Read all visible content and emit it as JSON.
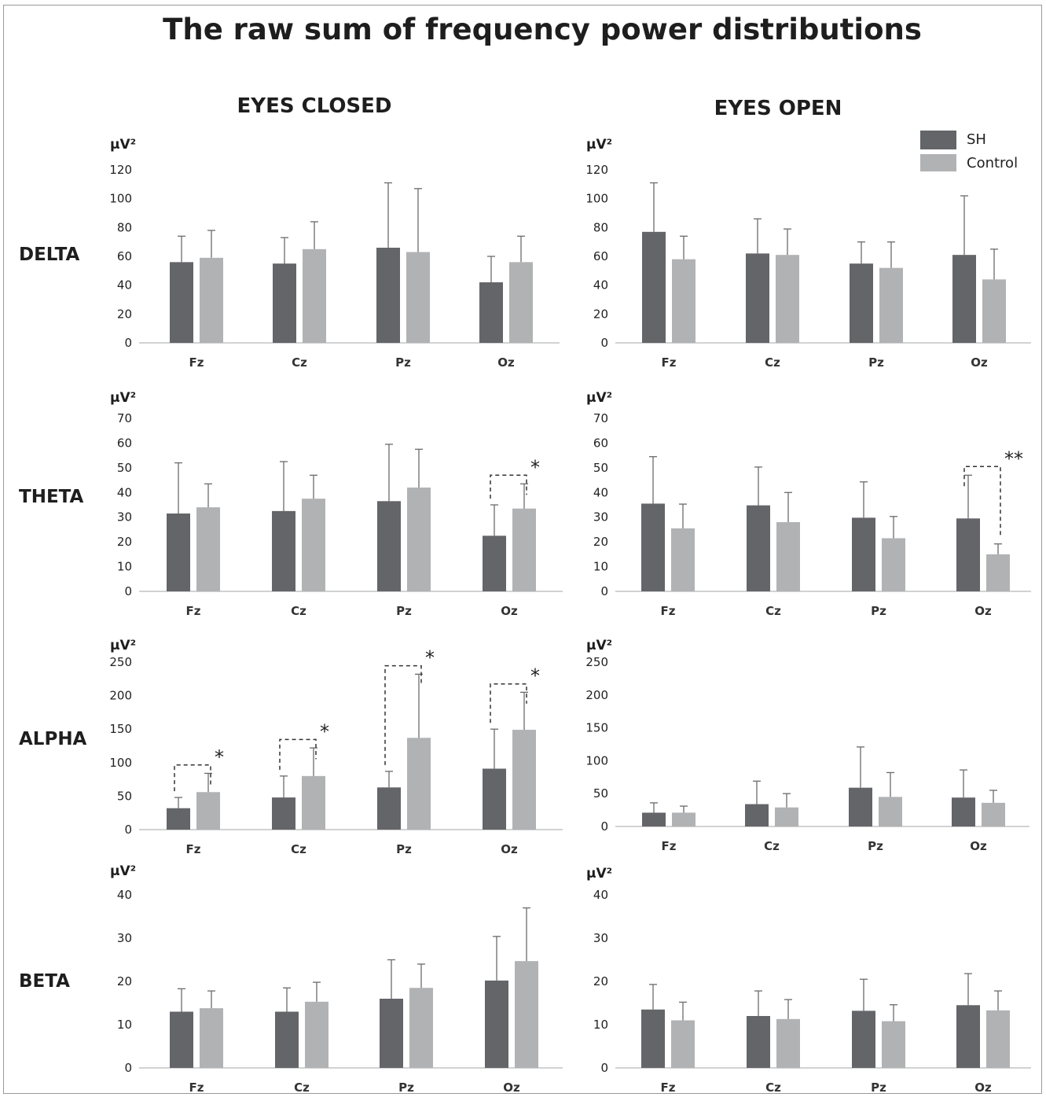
{
  "title": "The raw sum of frequency power distributions",
  "conditions": [
    "EYES CLOSED",
    "EYES OPEN"
  ],
  "bands": [
    "DELTA",
    "THETA",
    "ALPHA",
    "BETA"
  ],
  "unit": "µV²",
  "legend": [
    {
      "name": "SH",
      "color": "#646569"
    },
    {
      "name": "Control",
      "color": "#b1b2b4"
    }
  ],
  "chart_data": [
    {
      "type": "bar",
      "band": "DELTA",
      "condition": "EYES CLOSED",
      "ylim": [
        0,
        120
      ],
      "yticks": [
        0,
        20,
        40,
        60,
        80,
        100,
        120
      ],
      "categories": [
        "Fz",
        "Cz",
        "Pz",
        "Oz"
      ],
      "series": [
        {
          "name": "SH",
          "values": [
            56,
            55,
            66,
            42
          ],
          "errors": [
            18,
            18,
            45,
            18
          ]
        },
        {
          "name": "Control",
          "values": [
            59,
            65,
            63,
            56
          ],
          "errors": [
            19,
            19,
            44,
            18
          ]
        }
      ],
      "annotations": []
    },
    {
      "type": "bar",
      "band": "DELTA",
      "condition": "EYES OPEN",
      "ylim": [
        0,
        120
      ],
      "yticks": [
        0,
        20,
        40,
        60,
        80,
        100,
        120
      ],
      "categories": [
        "Fz",
        "Cz",
        "Pz",
        "Oz"
      ],
      "series": [
        {
          "name": "SH",
          "values": [
            77,
            62,
            55,
            61
          ],
          "errors": [
            34,
            24,
            15,
            41
          ]
        },
        {
          "name": "Control",
          "values": [
            58,
            61,
            52,
            44
          ],
          "errors": [
            16,
            18,
            18,
            21
          ]
        }
      ],
      "annotations": []
    },
    {
      "type": "bar",
      "band": "THETA",
      "condition": "EYES CLOSED",
      "ylim": [
        0,
        70
      ],
      "yticks": [
        0,
        10,
        20,
        30,
        40,
        50,
        60,
        70
      ],
      "categories": [
        "Fz",
        "Cz",
        "Pz",
        "Oz"
      ],
      "series": [
        {
          "name": "SH",
          "values": [
            31.5,
            32.5,
            36.5,
            22.5
          ],
          "errors": [
            20.5,
            20,
            23,
            12.5
          ]
        },
        {
          "name": "Control",
          "values": [
            34,
            37.5,
            42,
            33.5
          ],
          "errors": [
            9.5,
            9.5,
            15.5,
            10
          ]
        }
      ],
      "annotations": [
        {
          "category": "Oz",
          "label": "*"
        }
      ]
    },
    {
      "type": "bar",
      "band": "THETA",
      "condition": "EYES OPEN",
      "ylim": [
        0,
        70
      ],
      "yticks": [
        0,
        10,
        20,
        30,
        40,
        50,
        60,
        70
      ],
      "categories": [
        "Fz",
        "Cz",
        "Pz",
        "Oz"
      ],
      "series": [
        {
          "name": "SH",
          "values": [
            35.5,
            34.8,
            29.8,
            29.5
          ],
          "errors": [
            19,
            15.5,
            14.5,
            17.5
          ]
        },
        {
          "name": "Control",
          "values": [
            25.5,
            28,
            21.5,
            15
          ],
          "errors": [
            9.8,
            12,
            8.8,
            4.2
          ]
        }
      ],
      "annotations": [
        {
          "category": "Oz",
          "label": "**"
        }
      ]
    },
    {
      "type": "bar",
      "band": "ALPHA",
      "condition": "EYES CLOSED",
      "ylim": [
        0,
        250
      ],
      "yticks": [
        0,
        50,
        100,
        150,
        200,
        250
      ],
      "categories": [
        "Fz",
        "Cz",
        "Pz",
        "Oz"
      ],
      "series": [
        {
          "name": "SH",
          "values": [
            32,
            48,
            63,
            91
          ],
          "errors": [
            16,
            32,
            24,
            59
          ]
        },
        {
          "name": "Control",
          "values": [
            56,
            80,
            137,
            149
          ],
          "errors": [
            28,
            42,
            95,
            56
          ]
        }
      ],
      "annotations": [
        {
          "category": "Fz",
          "label": "*"
        },
        {
          "category": "Cz",
          "label": "*"
        },
        {
          "category": "Pz",
          "label": "*"
        },
        {
          "category": "Oz",
          "label": "*"
        }
      ]
    },
    {
      "type": "bar",
      "band": "ALPHA",
      "condition": "EYES OPEN",
      "ylim": [
        0,
        250
      ],
      "yticks": [
        0,
        50,
        100,
        150,
        200,
        250
      ],
      "categories": [
        "Fz",
        "Cz",
        "Pz",
        "Oz"
      ],
      "series": [
        {
          "name": "SH",
          "values": [
            21,
            34,
            59,
            44
          ],
          "errors": [
            15,
            35,
            62,
            42
          ]
        },
        {
          "name": "Control",
          "values": [
            21,
            29,
            45,
            36
          ],
          "errors": [
            10,
            21,
            37,
            19
          ]
        }
      ],
      "annotations": []
    },
    {
      "type": "bar",
      "band": "BETA",
      "condition": "EYES CLOSED",
      "ylim": [
        0,
        40
      ],
      "yticks": [
        0,
        10,
        20,
        30,
        40
      ],
      "categories": [
        "Fz",
        "Cz",
        "Pz",
        "Oz"
      ],
      "series": [
        {
          "name": "SH",
          "values": [
            13,
            13,
            16,
            20.2
          ],
          "errors": [
            5.3,
            5.5,
            9,
            10.2
          ]
        },
        {
          "name": "Control",
          "values": [
            13.8,
            15.3,
            18.5,
            24.7
          ],
          "errors": [
            4,
            4.5,
            5.5,
            12.3
          ]
        }
      ],
      "annotations": []
    },
    {
      "type": "bar",
      "band": "BETA",
      "condition": "EYES OPEN",
      "ylim": [
        0,
        40
      ],
      "yticks": [
        0,
        10,
        20,
        30,
        40
      ],
      "categories": [
        "Fz",
        "Cz",
        "Pz",
        "Oz"
      ],
      "series": [
        {
          "name": "SH",
          "values": [
            13.5,
            12,
            13.2,
            14.5
          ],
          "errors": [
            5.8,
            5.8,
            7.3,
            7.3
          ]
        },
        {
          "name": "Control",
          "values": [
            11,
            11.3,
            10.8,
            13.3
          ],
          "errors": [
            4.2,
            4.5,
            3.8,
            4.5
          ]
        }
      ],
      "annotations": []
    }
  ]
}
